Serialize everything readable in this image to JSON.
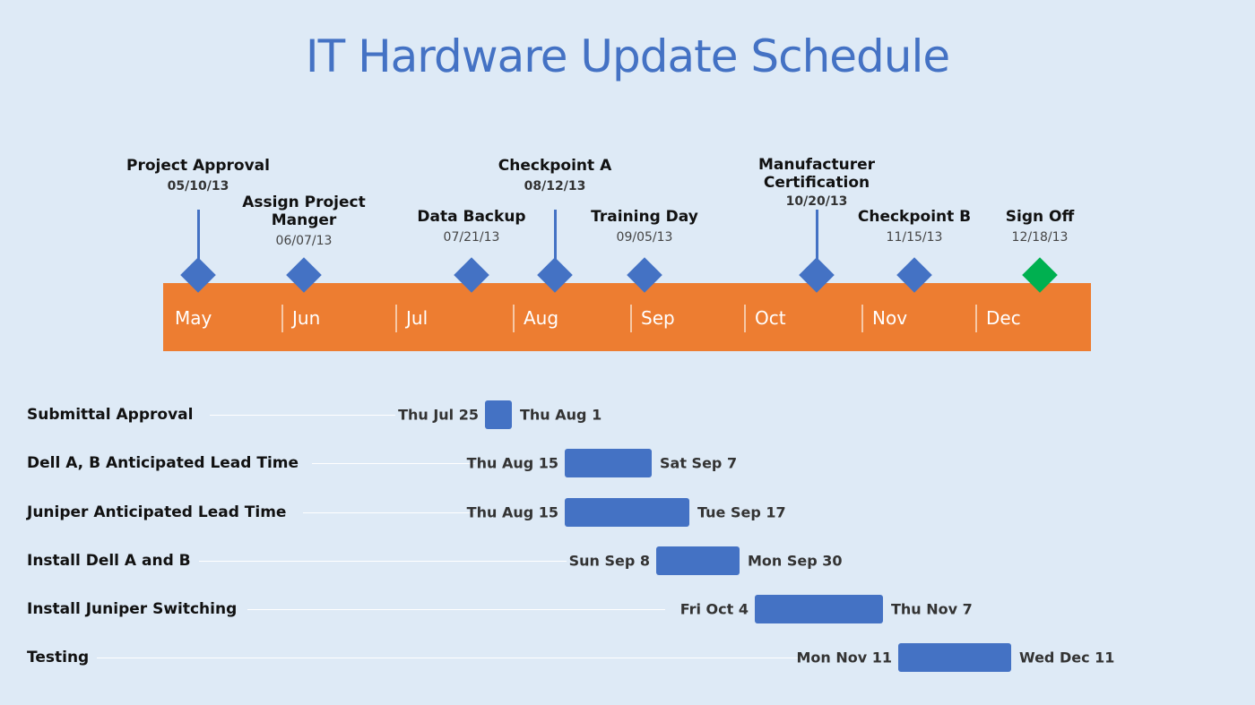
{
  "title": "IT Hardware Update Schedule",
  "colors": {
    "background": "#deeaf6",
    "band": "#ed7d31",
    "milestone": "#4472c4",
    "final_milestone": "#00b050",
    "task_bar": "#4472c4",
    "title": "#4472c4"
  },
  "months": [
    "May",
    "Jun",
    "Jul",
    "Aug",
    "Sep",
    "Oct",
    "Nov",
    "Dec"
  ],
  "milestones": [
    {
      "label": "Project Approval",
      "date": "05/10/13"
    },
    {
      "label": "Assign Project\nManger",
      "date": "06/07/13"
    },
    {
      "label": "Data Backup",
      "date": "07/21/13"
    },
    {
      "label": "Checkpoint A",
      "date": "08/12/13"
    },
    {
      "label": "Training Day",
      "date": "09/05/13"
    },
    {
      "label": "Manufacturer\nCertification",
      "date": "10/20/13"
    },
    {
      "label": "Checkpoint B",
      "date": "11/15/13"
    },
    {
      "label": "Sign Off",
      "date": "12/18/13"
    }
  ],
  "tasks": [
    {
      "name": "Submittal Approval",
      "start": "Thu Jul 25",
      "end": "Thu Aug 1"
    },
    {
      "name": "Dell A, B Anticipated Lead Time",
      "start": "Thu Aug 15",
      "end": "Sat Sep 7"
    },
    {
      "name": "Juniper Anticipated Lead Time",
      "start": "Thu Aug 15",
      "end": "Tue Sep 17"
    },
    {
      "name": "Install Dell A and B",
      "start": "Sun Sep 8",
      "end": "Mon Sep 30"
    },
    {
      "name": "Install Juniper Switching",
      "start": "Fri Oct 4",
      "end": "Thu Nov 7"
    },
    {
      "name": "Testing",
      "start": "Mon Nov 11",
      "end": "Wed Dec 11"
    }
  ]
}
